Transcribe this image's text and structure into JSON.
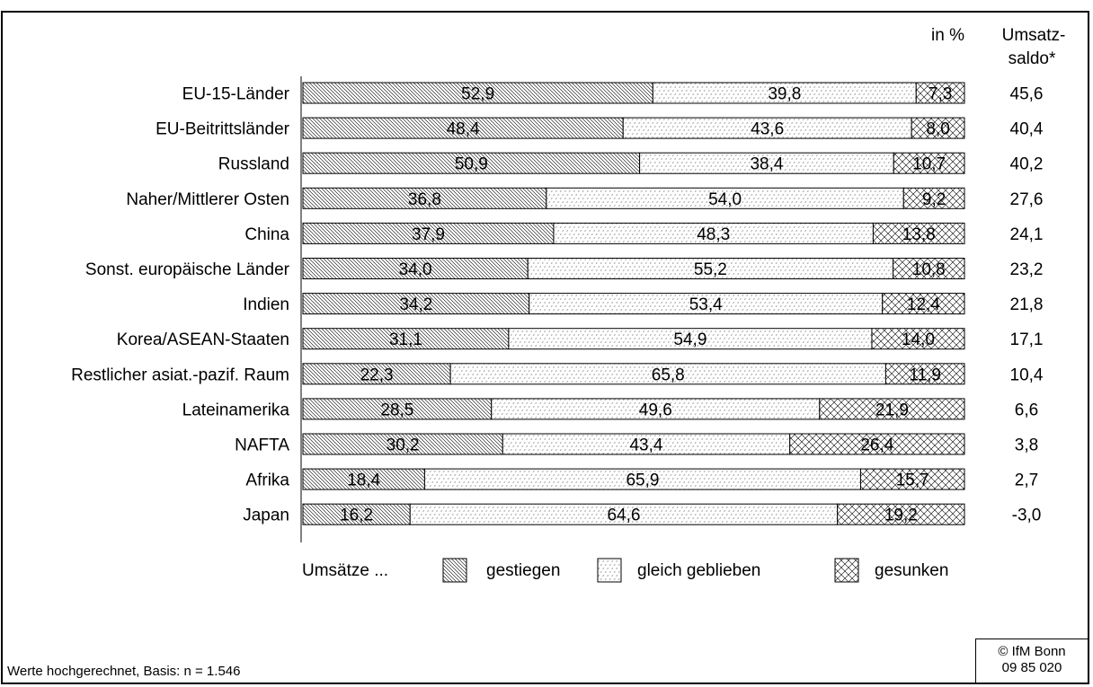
{
  "chart_data": {
    "type": "bar",
    "stacked": true,
    "orientation": "horizontal",
    "unit_label": "in %",
    "saldo_header": [
      "Umsatz-",
      "saldo*"
    ],
    "categories": [
      "EU-15-Länder",
      "EU-Beitrittsländer",
      "Russland",
      "Naher/Mittlerer Osten",
      "China",
      "Sonst. europäische Länder",
      "Indien",
      "Korea/ASEAN-Staaten",
      "Restlicher asiat.-pazif. Raum",
      "Lateinamerika",
      "NAFTA",
      "Afrika",
      "Japan"
    ],
    "series": [
      {
        "name": "gestiegen",
        "values": [
          52.9,
          48.4,
          50.9,
          36.8,
          37.9,
          34.0,
          34.2,
          31.1,
          22.3,
          28.5,
          30.2,
          18.4,
          16.2
        ]
      },
      {
        "name": "gleich geblieben",
        "values": [
          39.8,
          43.6,
          38.4,
          54.0,
          48.3,
          55.2,
          53.4,
          54.9,
          65.8,
          49.6,
          43.4,
          65.9,
          64.6
        ]
      },
      {
        "name": "gesunken",
        "values": [
          7.3,
          8.0,
          10.7,
          9.2,
          13.8,
          10.8,
          12.4,
          14.0,
          11.9,
          21.9,
          26.4,
          15.7,
          19.2
        ]
      }
    ],
    "saldo_values": [
      "45,6",
      "40,4",
      "40,2",
      "27,6",
      "24,1",
      "23,2",
      "21,8",
      "17,1",
      "10,4",
      "6,6",
      "3,8",
      "2,7",
      "-3,0"
    ],
    "xlim": [
      0,
      100
    ],
    "legend": {
      "prefix": "Umsätze ...",
      "placement": "bottom"
    },
    "grid": false,
    "decimal_separator": ","
  },
  "footnote": "Werte hochgerechnet, Basis: n = 1.546",
  "credit": {
    "line1": "© IfM Bonn",
    "line2": "09  85  020"
  },
  "colors": {
    "ink": "#000000",
    "background": "#ffffff"
  },
  "patterns": {
    "gestiegen": "diagonal-hatch",
    "gleich geblieben": "dotted-grey",
    "gesunken": "cross-hatch"
  }
}
